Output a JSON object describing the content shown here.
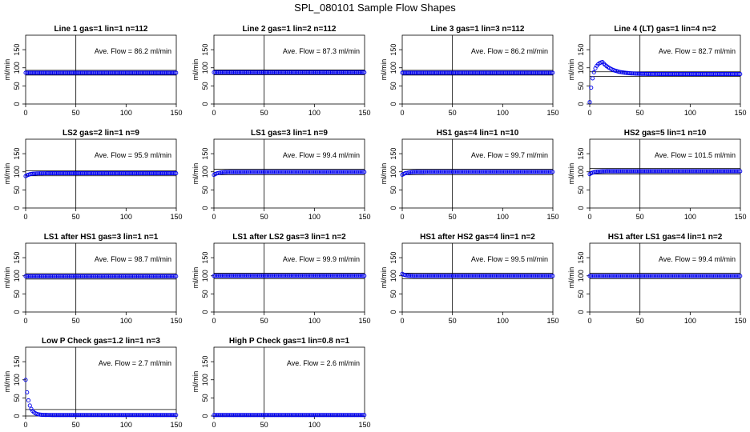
{
  "page_title": "SPL_080101  Sample Flow Shapes",
  "style": {
    "point_color": "#0000ee",
    "axis_color": "#000000"
  },
  "axes_common": {
    "x_ticks": [
      "0",
      "50",
      "100",
      "150"
    ],
    "y_ticks": [
      "0",
      "50",
      "100",
      "150"
    ],
    "y_label": "ml/min",
    "xlim": [
      0,
      150
    ],
    "ylim": [
      0,
      190
    ],
    "vline_x": 50
  },
  "chart_data": [
    {
      "type": "scatter",
      "title": "Line 1 gas=1 lin=1 n=112",
      "annotation": "Ave. Flow =  86.2  ml/min",
      "ref_lines": [
        93,
        80
      ],
      "shape": "flat",
      "level": 86.2
    },
    {
      "type": "scatter",
      "title": "Line 2 gas=1 lin=2 n=112",
      "annotation": "Ave. Flow =  87.3  ml/min",
      "ref_lines": [
        94,
        81
      ],
      "shape": "flat",
      "level": 87.3
    },
    {
      "type": "scatter",
      "title": "Line 3 gas=1 lin=3 n=112",
      "annotation": "Ave. Flow =  86.2  ml/min",
      "ref_lines": [
        93,
        80
      ],
      "shape": "flat",
      "level": 86.2
    },
    {
      "type": "scatter",
      "title": "Line 4 (LT) gas=1 lin=4 n=2",
      "annotation": "Ave. Flow =  82.7  ml/min",
      "ref_lines": [
        89,
        76
      ],
      "shape": "overshoot",
      "level": 82.7
    },
    {
      "type": "scatter",
      "title": "LS2 gas=2 lin=1 n=9",
      "annotation": "Ave. Flow =  95.9  ml/min",
      "ref_lines": [
        103,
        89
      ],
      "shape": "rise",
      "level": 95.9
    },
    {
      "type": "scatter",
      "title": "LS1 gas=3 lin=1 n=9",
      "annotation": "Ave. Flow =  99.4  ml/min",
      "ref_lines": [
        107,
        92
      ],
      "shape": "rise",
      "level": 99.4
    },
    {
      "type": "scatter",
      "title": "HS1 gas=4 lin=1 n=10",
      "annotation": "Ave. Flow =  99.7  ml/min",
      "ref_lines": [
        107,
        92
      ],
      "shape": "rise",
      "level": 99.7
    },
    {
      "type": "scatter",
      "title": "HS2 gas=5 lin=1 n=10",
      "annotation": "Ave. Flow =  101.5  ml/min",
      "ref_lines": [
        109,
        94
      ],
      "shape": "rise",
      "level": 101.5
    },
    {
      "type": "scatter",
      "title": "LS1 after HS1 gas=3 lin=1 n=1",
      "annotation": "Ave. Flow =  98.7  ml/min",
      "ref_lines": [
        106,
        91
      ],
      "shape": "flat",
      "level": 98.7
    },
    {
      "type": "scatter",
      "title": "LS1 after LS2 gas=3 lin=1 n=2",
      "annotation": "Ave. Flow =  99.9  ml/min",
      "ref_lines": [
        107,
        92
      ],
      "shape": "flat",
      "level": 99.9
    },
    {
      "type": "scatter",
      "title": "HS1 after HS2 gas=4 lin=1 n=2",
      "annotation": "Ave. Flow =  99.5  ml/min",
      "ref_lines": [
        107,
        92
      ],
      "shape": "drop",
      "level": 99.5
    },
    {
      "type": "scatter",
      "title": "HS1 after LS1 gas=4 lin=1 n=2",
      "annotation": "Ave. Flow =  99.4  ml/min",
      "ref_lines": [
        107,
        92
      ],
      "shape": "flat",
      "level": 99.4
    },
    {
      "type": "scatter",
      "title": "Low P Check gas=1.2 lin=1 n=3",
      "annotation": "Ave. Flow =  2.7  ml/min",
      "ref_lines": [
        18
      ],
      "shape": "decay",
      "level": 2.7
    },
    {
      "type": "scatter",
      "title": "High P Check gas=1 lin=0.8 n=1",
      "annotation": "Ave. Flow =  2.6  ml/min",
      "ref_lines": [],
      "shape": "flat",
      "level": 2.6
    }
  ]
}
